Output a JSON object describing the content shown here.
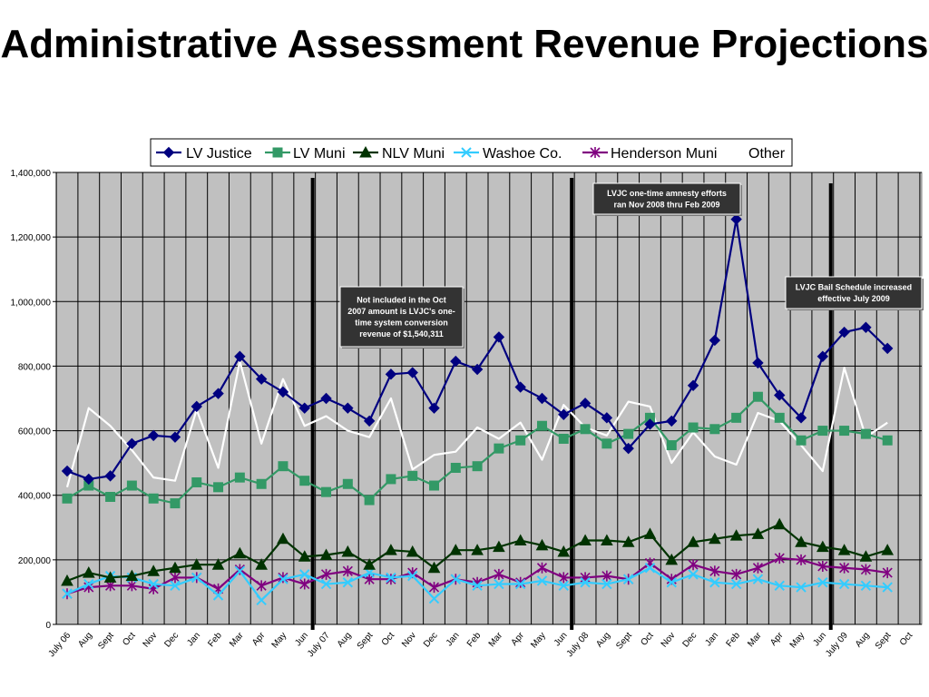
{
  "chart_data": {
    "type": "line",
    "title": "Administrative Assessment Revenue Projections",
    "xlabel": "",
    "ylabel": "",
    "ylim": [
      0,
      1400000
    ],
    "y_ticks": [
      0,
      200000,
      400000,
      600000,
      800000,
      1000000,
      1200000,
      1400000
    ],
    "y_tick_labels": [
      "0",
      "200,000",
      "400,000",
      "600,000",
      "800,000",
      "1,000,000",
      "1,200,000",
      "1,400,000"
    ],
    "grid": true,
    "legend_position": "top",
    "categories": [
      "July 06",
      "Aug",
      "Sept",
      "Oct",
      "Nov",
      "Dec",
      "Jan",
      "Feb",
      "Mar",
      "Apr",
      "May",
      "Jun",
      "July 07",
      "Aug",
      "Sept",
      "Oct",
      "Nov",
      "Dec",
      "Jan",
      "Feb",
      "Mar",
      "Apr",
      "May",
      "Jun",
      "July 08",
      "Aug",
      "Sept",
      "Oct",
      "Nov",
      "Dec",
      "Jan",
      "Feb",
      "Mar",
      "Apr",
      "May",
      "Jun",
      "July 09",
      "Aug",
      "Sept",
      "Oct"
    ],
    "series": [
      {
        "name": "LV Justice",
        "color": "#000080",
        "marker": "diamond",
        "values": [
          475000,
          450000,
          460000,
          560000,
          585000,
          580000,
          675000,
          715000,
          830000,
          760000,
          720000,
          670000,
          700000,
          670000,
          630000,
          775000,
          780000,
          670000,
          815000,
          790000,
          890000,
          735000,
          700000,
          650000,
          685000,
          640000,
          545000,
          620000,
          630000,
          740000,
          880000,
          1255000,
          810000,
          710000,
          640000,
          830000,
          905000,
          920000,
          855000,
          null
        ]
      },
      {
        "name": "LV Muni",
        "color": "#339966",
        "marker": "square",
        "values": [
          390000,
          430000,
          395000,
          430000,
          390000,
          375000,
          440000,
          425000,
          455000,
          435000,
          490000,
          445000,
          410000,
          435000,
          385000,
          450000,
          460000,
          430000,
          485000,
          490000,
          545000,
          570000,
          615000,
          575000,
          605000,
          560000,
          590000,
          640000,
          555000,
          610000,
          605000,
          640000,
          705000,
          640000,
          570000,
          600000,
          600000,
          590000,
          570000,
          null
        ]
      },
      {
        "name": "NLV Muni",
        "color": "#003300",
        "marker": "triangle",
        "values": [
          135000,
          160000,
          145000,
          150000,
          165000,
          175000,
          185000,
          185000,
          220000,
          185000,
          265000,
          210000,
          215000,
          225000,
          185000,
          230000,
          225000,
          175000,
          230000,
          230000,
          240000,
          260000,
          245000,
          225000,
          260000,
          260000,
          255000,
          280000,
          200000,
          255000,
          265000,
          275000,
          280000,
          310000,
          255000,
          240000,
          230000,
          210000,
          230000,
          null
        ]
      },
      {
        "name": "Washoe Co.",
        "color": "#33ccff",
        "marker": "x",
        "values": [
          95000,
          125000,
          150000,
          145000,
          125000,
          120000,
          145000,
          90000,
          165000,
          75000,
          140000,
          155000,
          125000,
          130000,
          160000,
          145000,
          150000,
          80000,
          140000,
          120000,
          125000,
          125000,
          135000,
          120000,
          130000,
          125000,
          140000,
          175000,
          130000,
          155000,
          130000,
          125000,
          140000,
          120000,
          115000,
          130000,
          125000,
          120000,
          115000,
          null
        ]
      },
      {
        "name": "Henderson Muni",
        "color": "#800080",
        "marker": "star",
        "values": [
          95000,
          115000,
          120000,
          120000,
          110000,
          145000,
          145000,
          110000,
          170000,
          120000,
          145000,
          125000,
          155000,
          165000,
          140000,
          140000,
          160000,
          115000,
          140000,
          130000,
          155000,
          130000,
          175000,
          145000,
          145000,
          150000,
          140000,
          190000,
          140000,
          185000,
          165000,
          155000,
          175000,
          205000,
          200000,
          180000,
          175000,
          170000,
          160000,
          null
        ]
      },
      {
        "name": "Other",
        "color": "#ffffff",
        "marker": "none",
        "values": [
          425000,
          670000,
          615000,
          540000,
          455000,
          445000,
          665000,
          485000,
          815000,
          560000,
          760000,
          615000,
          645000,
          600000,
          580000,
          700000,
          480000,
          525000,
          535000,
          610000,
          575000,
          625000,
          510000,
          680000,
          610000,
          585000,
          690000,
          675000,
          500000,
          595000,
          520000,
          495000,
          655000,
          630000,
          555000,
          475000,
          795000,
          580000,
          625000,
          null
        ]
      }
    ],
    "annotations": [
      {
        "text_lines": [
          "Not included in the Oct",
          "2007 amount is LVJC's one-",
          "time system conversion",
          "revenue of $1,540,311"
        ],
        "anchor_category": "Dec"
      },
      {
        "text_lines": [
          "LVJC one-time amnesty efforts",
          "ran Nov 2008 thru Feb 2009"
        ],
        "anchor_category": "Oct"
      },
      {
        "text_lines": [
          "LVJC Bail Schedule increased",
          "effective July 2009"
        ],
        "anchor_category": "Sept"
      }
    ],
    "vertical_markers": [
      "July 07",
      "July 08",
      "July 09"
    ]
  }
}
